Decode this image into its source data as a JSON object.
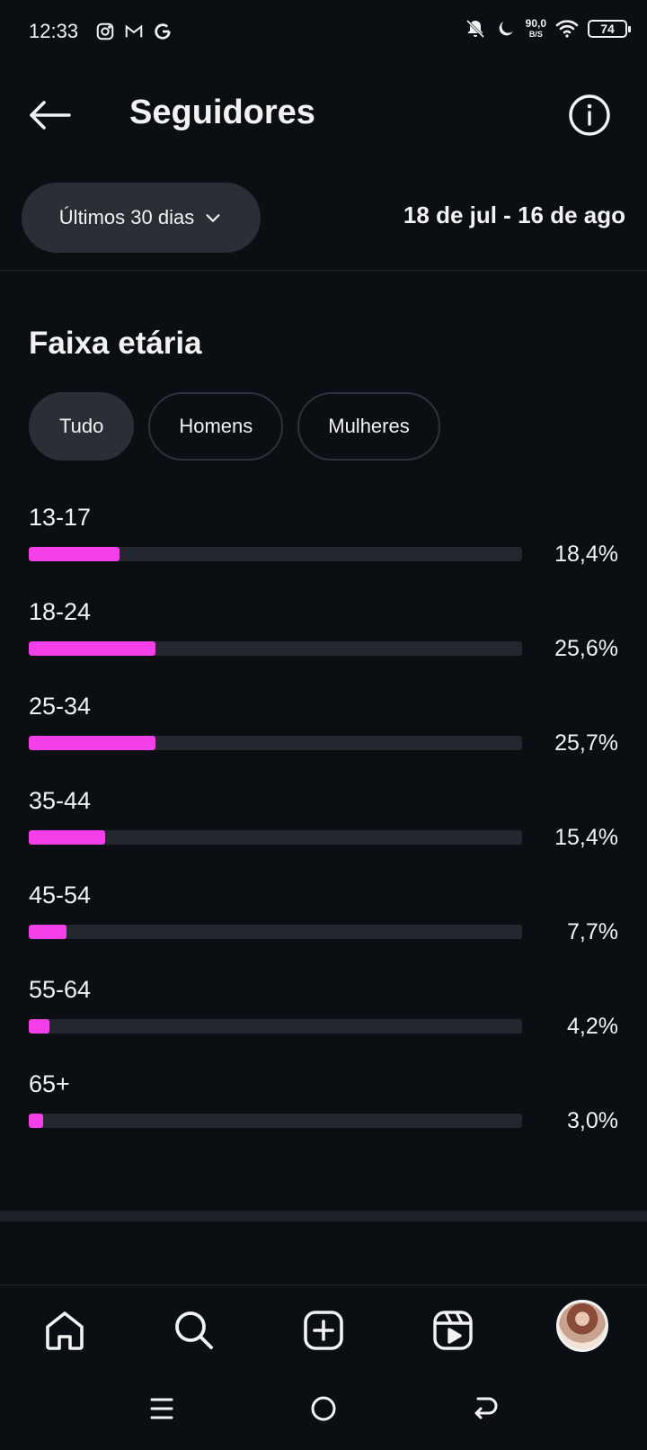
{
  "status_bar": {
    "time": "12:33",
    "left_icons": [
      "instagram-icon",
      "gmail-icon",
      "google-icon"
    ],
    "netspeed_value": "90,0",
    "netspeed_unit": "B/S",
    "battery": "74"
  },
  "header": {
    "title": "Seguidores"
  },
  "range": {
    "dropdown_label": "Últimos 30 dias",
    "dates": "18 de jul - 16 de ago"
  },
  "section": {
    "title": "Faixa etária"
  },
  "filters": [
    {
      "label": "Tudo",
      "active": true
    },
    {
      "label": "Homens",
      "active": false
    },
    {
      "label": "Mulheres",
      "active": false
    }
  ],
  "age_groups": [
    {
      "label": "13-17",
      "percent_text": "18,4%",
      "value": 18.4
    },
    {
      "label": "18-24",
      "percent_text": "25,6%",
      "value": 25.6
    },
    {
      "label": "25-34",
      "percent_text": "25,7%",
      "value": 25.7
    },
    {
      "label": "35-44",
      "percent_text": "15,4%",
      "value": 15.4
    },
    {
      "label": "45-54",
      "percent_text": "7,7%",
      "value": 7.7
    },
    {
      "label": "55-64",
      "percent_text": "4,2%",
      "value": 4.2
    },
    {
      "label": "65+",
      "percent_text": "3,0%",
      "value": 3.0
    }
  ],
  "colors": {
    "background": "#0b0e13",
    "bar_fill": "#f23fe8",
    "bar_track": "#24272e",
    "chip_active": "#2a2e35"
  },
  "bottom_nav": [
    "home-icon",
    "search-icon",
    "create-icon",
    "reels-icon",
    "profile-avatar"
  ]
}
